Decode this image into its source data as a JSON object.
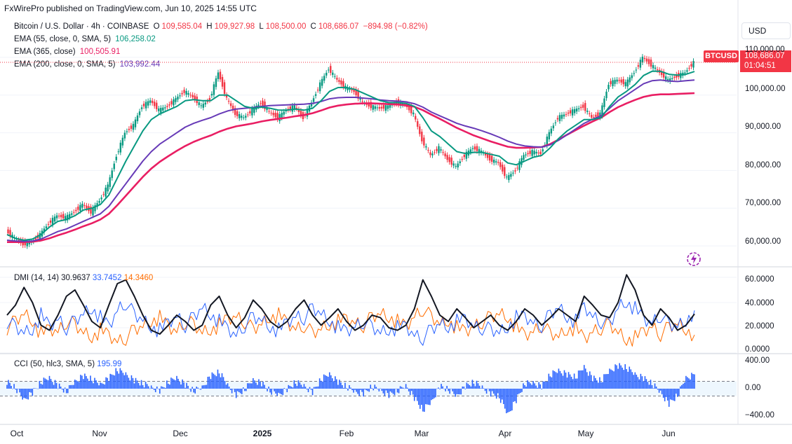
{
  "publisher": "FxWirePro published on TradingView.com, Jun 10, 2025 14:55 UTC",
  "symbol": {
    "name": "Bitcoin / U.S. Dollar · 4h · COINBASE",
    "open_label": "O",
    "open": "109,585.04",
    "high_label": "H",
    "high": "109,927.98",
    "low_label": "L",
    "low": "108,500.00",
    "close_label": "C",
    "close": "108,686.07",
    "change": "−894.98 (−0.82%)",
    "ticker": "BTCUSD",
    "countdown": "01:04:51"
  },
  "currency": "USD",
  "indicators": {
    "ema55": {
      "label": "EMA (55, close, 0, SMA, 5)",
      "value": "106,258.02",
      "color": "#089981"
    },
    "ema365": {
      "label": "EMA (365, close)",
      "value": "100,505.91",
      "color": "#e91e63"
    },
    "ema200": {
      "label": "EMA (200, close, 0, SMA, 5)",
      "value": "103,992.44",
      "color": "#673ab7"
    }
  },
  "dmi": {
    "label": "DMI (14, 14)",
    "adx": "30.9637",
    "plus": "33.7452",
    "minus": "14.3460",
    "colors": {
      "adx": "#131722",
      "plus": "#2962ff",
      "minus": "#ff6d00"
    }
  },
  "cci": {
    "label": "CCI (50, hlc3, SMA, 5)",
    "value": "195.99",
    "color": "#2962ff"
  },
  "price_axis": [
    "110,000.00",
    "100,000.00",
    "90,000.00",
    "80,000.00",
    "70,000.00",
    "60,000.00"
  ],
  "dmi_axis": [
    "60.0000",
    "40.0000",
    "20.0000",
    "0.0000"
  ],
  "cci_axis": [
    "400.00",
    "0.00",
    "−400.00"
  ],
  "x_axis": [
    "Oct",
    "Nov",
    "Dec",
    "2025",
    "Feb",
    "Mar",
    "Apr",
    "May",
    "Jun"
  ],
  "chart_data": {
    "type": "line",
    "x_labels": [
      "Oct",
      "Nov",
      "Dec",
      "2025",
      "Feb",
      "Mar",
      "Apr",
      "May",
      "Jun"
    ],
    "price": {
      "ylim": [
        55000,
        115000
      ],
      "ticks": [
        60000,
        70000,
        80000,
        90000,
        100000,
        110000
      ],
      "last": 108686.07,
      "close_series": [
        64000,
        62000,
        60500,
        61000,
        63000,
        66000,
        68000,
        67500,
        69000,
        71000,
        69000,
        72000,
        76000,
        84000,
        90000,
        92000,
        97000,
        98500,
        96000,
        97000,
        99000,
        101000,
        99500,
        97000,
        99000,
        106000,
        99000,
        95000,
        94000,
        96000,
        98000,
        95500,
        94000,
        96000,
        97000,
        94000,
        98000,
        103000,
        107000,
        104000,
        102000,
        101000,
        98000,
        97000,
        96500,
        97000,
        98000,
        97500,
        95000,
        88000,
        84000,
        86000,
        83000,
        81000,
        84000,
        86000,
        85000,
        83000,
        82000,
        78000,
        80000,
        84000,
        85000,
        84500,
        90000,
        94000,
        95000,
        96000,
        97000,
        94000,
        95000,
        103000,
        104000,
        103000,
        106000,
        110000,
        108000,
        106000,
        104000,
        105000,
        106000,
        108686
      ],
      "ema55": [
        63000,
        62000,
        61500,
        61800,
        63000,
        65000,
        66500,
        67000,
        68000,
        69500,
        70000,
        71000,
        73500,
        78000,
        82500,
        86500,
        90500,
        93500,
        95000,
        96000,
        97000,
        98500,
        98800,
        98500,
        98500,
        100000,
        100000,
        98500,
        97000,
        96500,
        96800,
        96500,
        96000,
        96000,
        96300,
        96000,
        96500,
        98500,
        101000,
        102000,
        102000,
        101500,
        100500,
        99500,
        98500,
        98000,
        98000,
        97800,
        97000,
        94000,
        90500,
        89000,
        87000,
        85000,
        84500,
        84800,
        84800,
        84300,
        83800,
        82000,
        81500,
        82500,
        83500,
        84000,
        86000,
        88500,
        90500,
        92000,
        93500,
        93500,
        94000,
        97000,
        99500,
        101000,
        102800,
        105200,
        106300,
        106300,
        105500,
        105300,
        105500,
        106258
      ],
      "ema200": [
        61500,
        61300,
        61200,
        61300,
        61800,
        62800,
        63800,
        64500,
        65500,
        66500,
        67500,
        68500,
        70500,
        73500,
        76500,
        79500,
        82500,
        85000,
        87000,
        88500,
        90000,
        91500,
        92500,
        93300,
        94000,
        95000,
        95800,
        96300,
        96500,
        96700,
        97000,
        97200,
        97300,
        97400,
        97500,
        97600,
        97800,
        98300,
        99000,
        99300,
        99400,
        99400,
        99200,
        99000,
        98700,
        98500,
        98400,
        98200,
        97700,
        96800,
        95500,
        94500,
        93500,
        92500,
        91800,
        91200,
        90500,
        89700,
        88800,
        87800,
        87000,
        86500,
        86300,
        86200,
        86800,
        88000,
        89500,
        91000,
        92500,
        93600,
        94500,
        96500,
        98500,
        100000,
        101500,
        103000,
        103800,
        104000,
        103700,
        103600,
        103800,
        103992
      ],
      "ema365": [
        61000,
        61000,
        61000,
        61100,
        61400,
        62000,
        62800,
        63500,
        64300,
        65200,
        66000,
        67000,
        68500,
        70800,
        73300,
        75800,
        78300,
        80500,
        82300,
        83800,
        85200,
        86500,
        87600,
        88500,
        89300,
        90300,
        91100,
        91700,
        92100,
        92500,
        93000,
        93400,
        93700,
        94000,
        94400,
        94700,
        95200,
        95900,
        96700,
        97200,
        97500,
        97700,
        97800,
        97800,
        97700,
        97600,
        97500,
        97300,
        96900,
        96000,
        94800,
        93700,
        92500,
        91300,
        90300,
        89300,
        88500,
        87700,
        87000,
        86300,
        86000,
        86000,
        86100,
        86200,
        87000,
        88200,
        89500,
        90700,
        91900,
        93000,
        94000,
        95500,
        96800,
        97800,
        98700,
        99500,
        100000,
        100200,
        100200,
        100300,
        100400,
        100506
      ]
    },
    "dmi": {
      "ylim": [
        0,
        65
      ],
      "ticks": [
        0,
        20,
        40,
        60
      ],
      "adx": [
        30,
        38,
        52,
        40,
        22,
        18,
        30,
        45,
        50,
        38,
        25,
        20,
        38,
        55,
        58,
        45,
        30,
        18,
        15,
        22,
        30,
        25,
        18,
        22,
        38,
        45,
        30,
        20,
        28,
        42,
        35,
        25,
        20,
        25,
        35,
        42,
        30,
        22,
        28,
        35,
        25,
        18,
        22,
        30,
        28,
        20,
        18,
        22,
        35,
        58,
        45,
        30,
        25,
        35,
        28,
        20,
        25,
        30,
        22,
        18,
        25,
        35,
        30,
        22,
        28,
        35,
        30,
        25,
        45,
        38,
        30,
        28,
        40,
        62,
        50,
        30,
        22,
        35,
        28,
        18,
        22,
        30.96
      ],
      "plus_di": [
        25,
        20,
        15,
        18,
        30,
        22,
        28,
        20,
        25,
        30,
        35,
        28,
        22,
        35,
        40,
        30,
        25,
        20,
        18,
        25,
        30,
        22,
        28,
        35,
        30,
        25,
        20,
        15,
        22,
        28,
        25,
        20,
        18,
        25,
        30,
        28,
        35,
        30,
        25,
        20,
        18,
        22,
        25,
        20,
        15,
        18,
        20,
        22,
        15,
        12,
        18,
        22,
        20,
        25,
        28,
        22,
        20,
        18,
        15,
        20,
        28,
        30,
        25,
        22,
        30,
        35,
        28,
        25,
        38,
        30,
        25,
        22,
        35,
        40,
        35,
        28,
        25,
        30,
        22,
        20,
        25,
        33.75
      ],
      "minus_di": [
        20,
        25,
        30,
        25,
        15,
        20,
        18,
        25,
        22,
        15,
        12,
        18,
        15,
        10,
        12,
        18,
        20,
        25,
        28,
        22,
        18,
        25,
        22,
        15,
        18,
        22,
        28,
        30,
        25,
        18,
        22,
        28,
        30,
        25,
        20,
        22,
        15,
        18,
        22,
        25,
        28,
        25,
        22,
        28,
        30,
        28,
        25,
        22,
        30,
        35,
        28,
        22,
        25,
        20,
        18,
        22,
        25,
        28,
        30,
        28,
        20,
        15,
        18,
        22,
        15,
        12,
        18,
        20,
        12,
        18,
        20,
        22,
        15,
        10,
        12,
        18,
        22,
        15,
        20,
        22,
        18,
        14.35
      ]
    },
    "cci": {
      "ylim": [
        -450,
        450
      ],
      "ticks": [
        -400,
        0,
        400
      ],
      "bands": [
        -100,
        100
      ],
      "values": [
        100,
        0,
        -150,
        -50,
        80,
        150,
        50,
        -50,
        100,
        180,
        120,
        60,
        150,
        250,
        200,
        120,
        60,
        20,
        -20,
        80,
        150,
        60,
        -40,
        20,
        180,
        220,
        50,
        -80,
        -20,
        120,
        80,
        -40,
        -80,
        0,
        80,
        40,
        -40,
        120,
        200,
        100,
        20,
        -40,
        -60,
        20,
        -20,
        -80,
        -40,
        40,
        -120,
        -300,
        -180,
        40,
        -20,
        -100,
        40,
        80,
        20,
        -60,
        -120,
        -350,
        -150,
        60,
        80,
        40,
        180,
        250,
        200,
        150,
        300,
        150,
        100,
        250,
        320,
        280,
        200,
        150,
        60,
        -50,
        -200,
        -100,
        150,
        195.99
      ]
    }
  }
}
